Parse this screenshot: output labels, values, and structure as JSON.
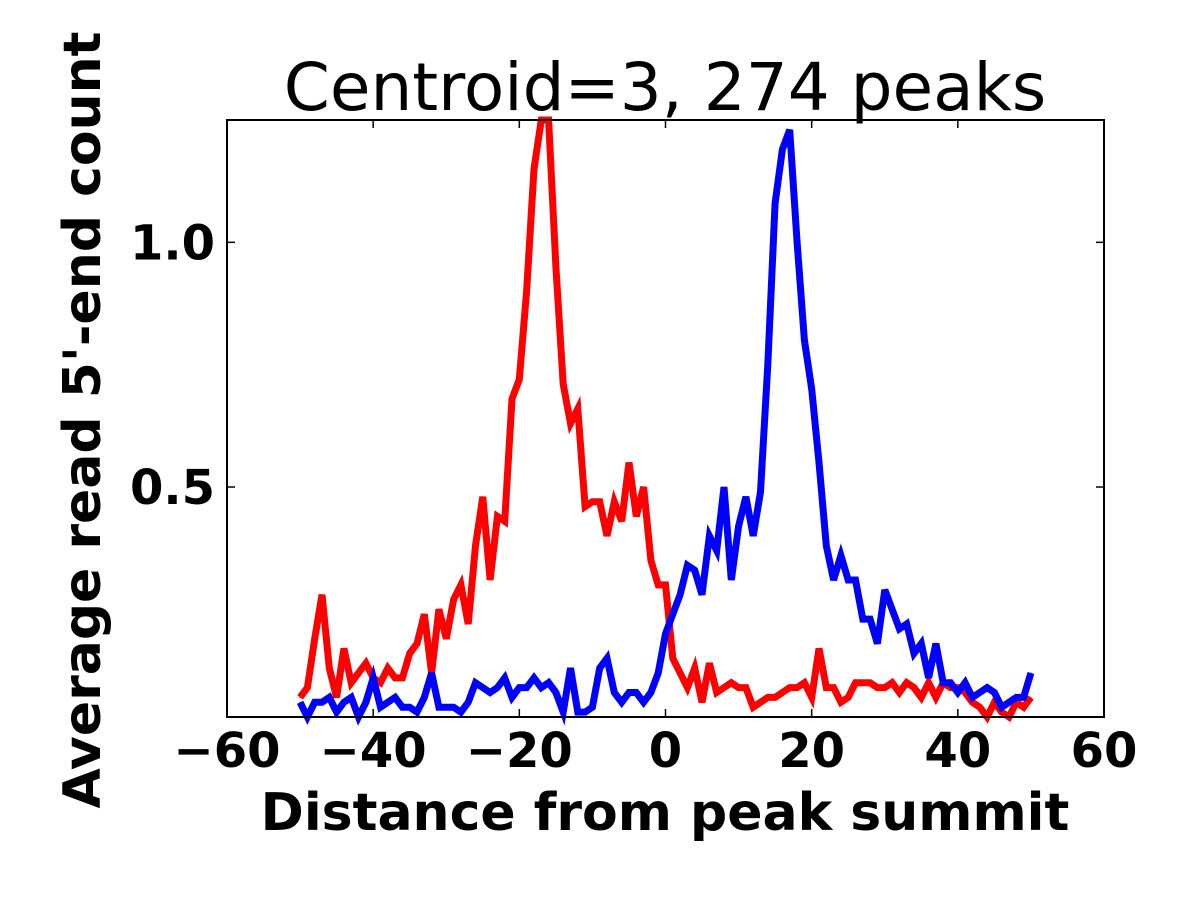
{
  "chart_data": {
    "type": "line",
    "title": "Centroid=3, 274 peaks",
    "xlabel": "Distance from peak summit",
    "ylabel": "Average read 5'-end count",
    "xlim": [
      -60,
      60
    ],
    "ylim": [
      0.03,
      1.25
    ],
    "xticks": [
      -60,
      -40,
      -20,
      0,
      20,
      40,
      60
    ],
    "xtick_labels": [
      "−60",
      "−40",
      "−20",
      "0",
      "20",
      "40",
      "60"
    ],
    "yticks": [
      0.5,
      1.0
    ],
    "ytick_labels": [
      "0.5",
      "1.0"
    ],
    "grid": false,
    "legend": "none",
    "x": [
      -50,
      -49,
      -48,
      -47,
      -46,
      -45,
      -44,
      -43,
      -42,
      -41,
      -40,
      -39,
      -38,
      -37,
      -36,
      -35,
      -34,
      -33,
      -32,
      -31,
      -30,
      -29,
      -28,
      -27,
      -26,
      -25,
      -24,
      -23,
      -22,
      -21,
      -20,
      -19,
      -18,
      -17,
      -16,
      -15,
      -14,
      -13,
      -12,
      -11,
      -10,
      -9,
      -8,
      -7,
      -6,
      -5,
      -4,
      -3,
      -2,
      -1,
      0,
      1,
      2,
      3,
      4,
      5,
      6,
      7,
      8,
      9,
      10,
      11,
      12,
      13,
      14,
      15,
      16,
      17,
      18,
      19,
      20,
      21,
      22,
      23,
      24,
      25,
      26,
      27,
      28,
      29,
      30,
      31,
      32,
      33,
      34,
      35,
      36,
      37,
      38,
      39,
      40,
      41,
      42,
      43,
      44,
      45,
      46,
      47,
      48,
      49,
      50
    ],
    "series": [
      {
        "color": "#ff0000",
        "values": [
          0.07,
          0.09,
          0.19,
          0.28,
          0.13,
          0.07,
          0.17,
          0.1,
          0.12,
          0.14,
          0.11,
          0.1,
          0.13,
          0.11,
          0.11,
          0.16,
          0.18,
          0.24,
          0.12,
          0.25,
          0.19,
          0.27,
          0.3,
          0.22,
          0.38,
          0.48,
          0.31,
          0.44,
          0.43,
          0.68,
          0.72,
          0.9,
          1.15,
          1.25,
          1.25,
          0.95,
          0.71,
          0.63,
          0.66,
          0.46,
          0.47,
          0.47,
          0.4,
          0.47,
          0.43,
          0.55,
          0.44,
          0.5,
          0.35,
          0.3,
          0.3,
          0.15,
          0.12,
          0.09,
          0.13,
          0.06,
          0.14,
          0.08,
          0.09,
          0.1,
          0.09,
          0.09,
          0.05,
          0.06,
          0.07,
          0.07,
          0.08,
          0.09,
          0.09,
          0.1,
          0.07,
          0.17,
          0.09,
          0.09,
          0.06,
          0.07,
          0.1,
          0.1,
          0.1,
          0.09,
          0.09,
          0.1,
          0.08,
          0.1,
          0.09,
          0.07,
          0.1,
          0.07,
          0.1,
          0.09,
          0.09,
          0.08,
          0.06,
          0.05,
          0.03,
          0.06,
          0.04,
          0.03,
          0.06,
          0.05,
          0.07
        ]
      },
      {
        "color": "#0000ff",
        "values": [
          0.06,
          0.03,
          0.06,
          0.06,
          0.07,
          0.04,
          0.06,
          0.07,
          0.03,
          0.06,
          0.11,
          0.05,
          0.06,
          0.07,
          0.05,
          0.05,
          0.04,
          0.07,
          0.12,
          0.05,
          0.05,
          0.05,
          0.04,
          0.06,
          0.1,
          0.09,
          0.08,
          0.09,
          0.11,
          0.07,
          0.09,
          0.09,
          0.11,
          0.09,
          0.1,
          0.08,
          0.04,
          0.13,
          0.04,
          0.04,
          0.05,
          0.13,
          0.15,
          0.08,
          0.06,
          0.08,
          0.08,
          0.06,
          0.08,
          0.12,
          0.2,
          0.24,
          0.28,
          0.34,
          0.33,
          0.28,
          0.4,
          0.37,
          0.5,
          0.31,
          0.42,
          0.48,
          0.4,
          0.49,
          0.75,
          1.08,
          1.19,
          1.23,
          1.0,
          0.8,
          0.7,
          0.55,
          0.38,
          0.31,
          0.36,
          0.31,
          0.31,
          0.23,
          0.23,
          0.18,
          0.29,
          0.25,
          0.21,
          0.22,
          0.16,
          0.18,
          0.11,
          0.18,
          0.1,
          0.1,
          0.08,
          0.1,
          0.07,
          0.08,
          0.09,
          0.08,
          0.05,
          0.06,
          0.07,
          0.07,
          0.12
        ]
      }
    ]
  }
}
